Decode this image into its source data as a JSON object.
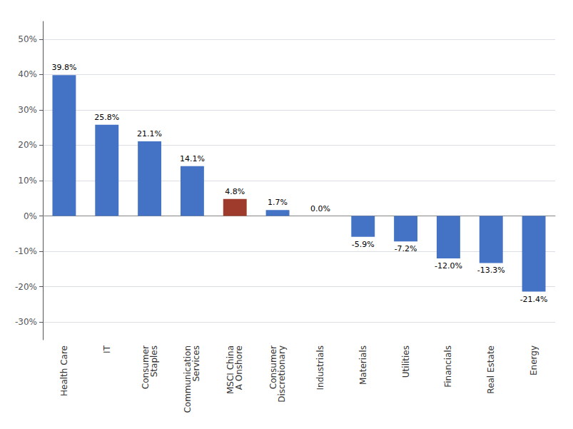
{
  "chart_data": {
    "type": "bar",
    "categories": [
      "Health Care",
      "IT",
      "Consumer\nStaples",
      "Communication\nServices",
      "MSCI China\nA Onshore",
      "Consumer\nDiscretionary",
      "Industrials",
      "Materials",
      "Utilities",
      "Financials",
      "Real Estate",
      "Energy"
    ],
    "values": [
      39.8,
      25.8,
      21.1,
      14.1,
      4.8,
      1.7,
      0.0,
      -5.9,
      -7.2,
      -12.0,
      -13.3,
      -21.4
    ],
    "value_labels": [
      "39.8%",
      "25.8%",
      "21.1%",
      "14.1%",
      "4.8%",
      "1.7%",
      "0.0%",
      "-5.9%",
      "-7.2%",
      "-12.0%",
      "-13.3%",
      "-21.4%"
    ],
    "colors": [
      "#4472C4",
      "#4472C4",
      "#4472C4",
      "#4472C4",
      "#9E3B2C",
      "#4472C4",
      "#4472C4",
      "#4472C4",
      "#4472C4",
      "#4472C4",
      "#4472C4",
      "#4472C4"
    ],
    "ylim": [
      -35,
      55
    ],
    "yticks": [
      {
        "value": -30,
        "label": "-30%"
      },
      {
        "value": -20,
        "label": "-20%"
      },
      {
        "value": -10,
        "label": "-10%"
      },
      {
        "value": 0,
        "label": "0%"
      },
      {
        "value": 10,
        "label": "10%"
      },
      {
        "value": 20,
        "label": "20%"
      },
      {
        "value": 30,
        "label": "30%"
      },
      {
        "value": 40,
        "label": "40%"
      },
      {
        "value": 50,
        "label": "50%"
      }
    ],
    "grid": true,
    "data_labels": true
  }
}
